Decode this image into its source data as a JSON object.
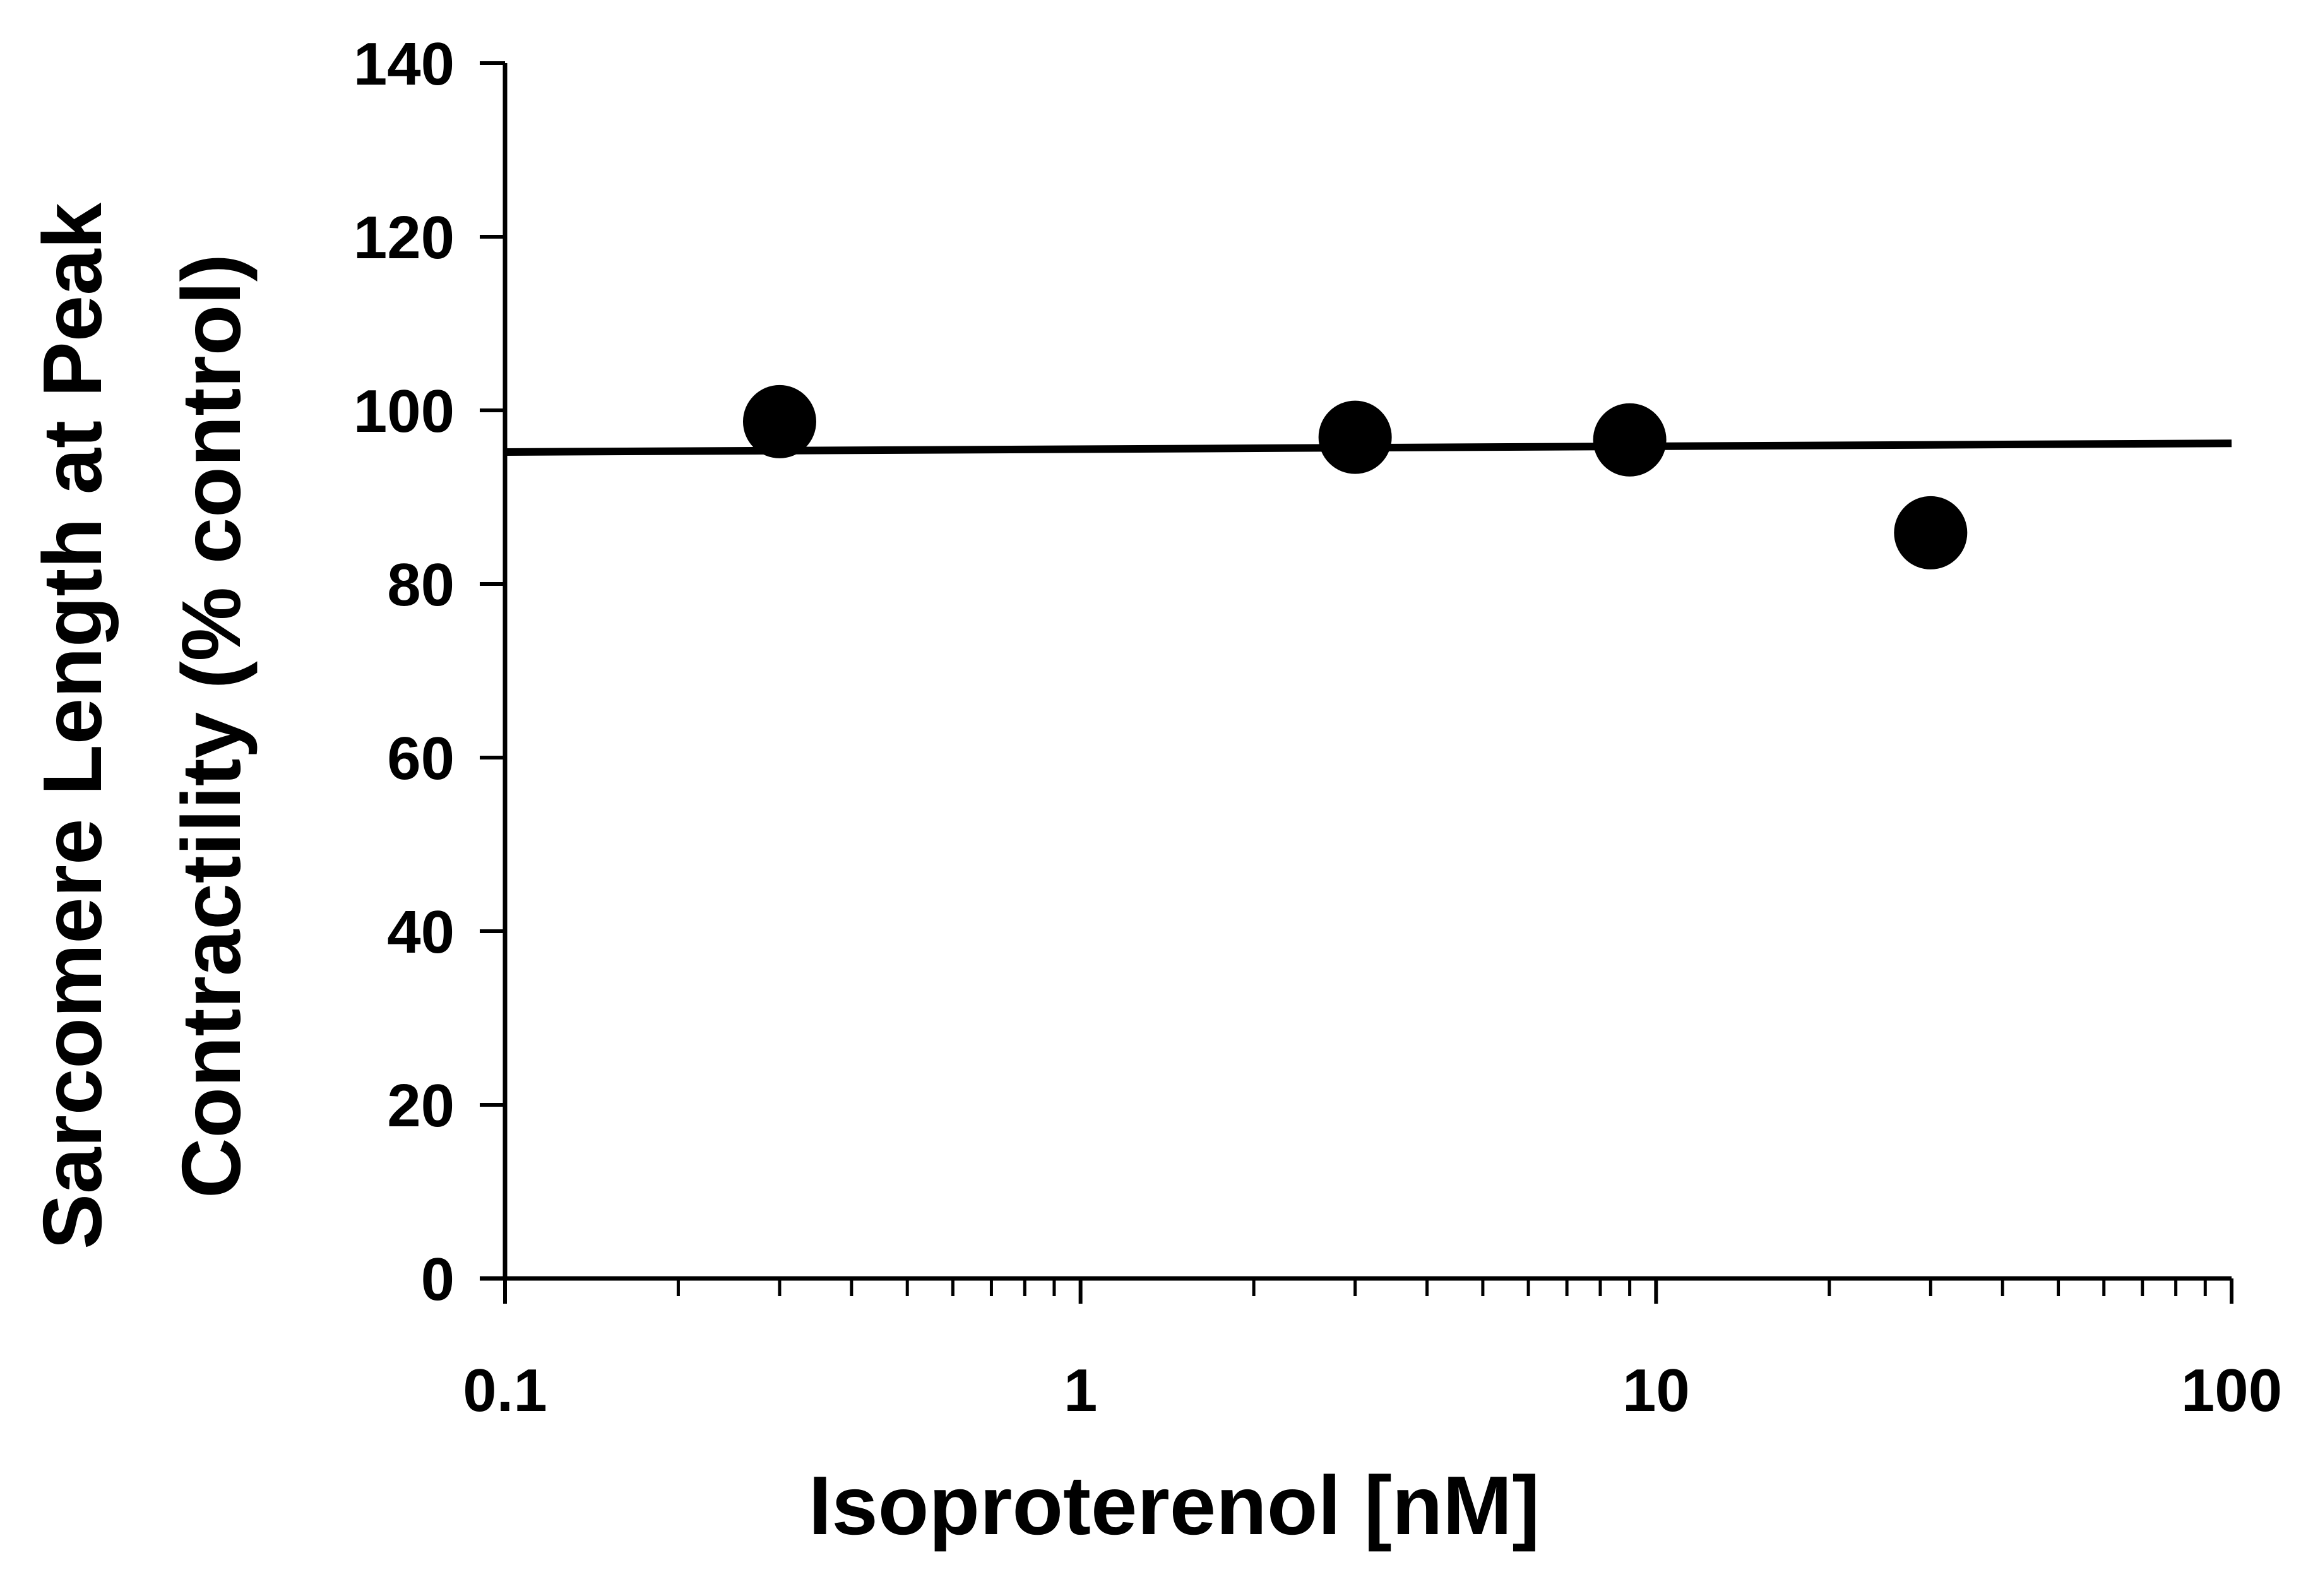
{
  "chart_data": {
    "type": "scatter",
    "title": "",
    "xlabel": "Isoproterenol [nM]",
    "ylabel_lines": [
      "Sarcomere Length at Peak",
      "Contractility (% control)"
    ],
    "x_scale": "log",
    "xlim": [
      0.1,
      100
    ],
    "ylim": [
      0,
      140
    ],
    "x_ticks": [
      0.1,
      1,
      10,
      100
    ],
    "x_tick_labels": [
      "0.1",
      "1",
      "10",
      "100"
    ],
    "y_ticks": [
      0,
      20,
      40,
      60,
      80,
      100,
      120,
      140
    ],
    "y_tick_labels": [
      "0",
      "20",
      "40",
      "60",
      "80",
      "100",
      "120",
      "140"
    ],
    "grid": false,
    "legend": "none",
    "series": [
      {
        "points": [
          {
            "x": 0.3,
            "y": 98.7
          },
          {
            "x": 3,
            "y": 96.9
          },
          {
            "x": 9,
            "y": 96.6
          },
          {
            "x": 30,
            "y": 85.9
          }
        ],
        "marker_color": "#000000"
      }
    ],
    "fit_line": {
      "points": [
        {
          "x": 0.1,
          "y": 95.2
        },
        {
          "x": 100,
          "y": 96.2
        }
      ],
      "color": "#000000"
    }
  }
}
